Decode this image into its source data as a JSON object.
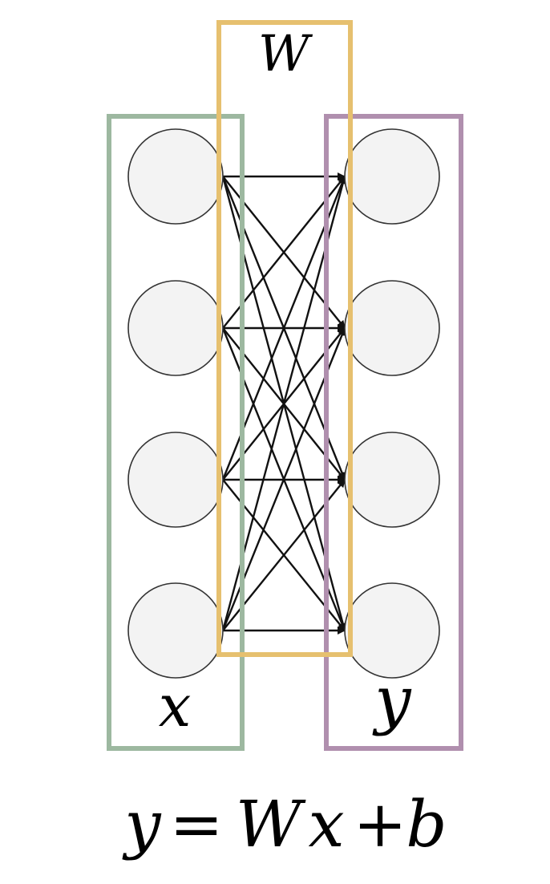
{
  "labels": {
    "weights": "W",
    "input": "x",
    "output": "y"
  },
  "equation": {
    "lhs": "y",
    "equals": "=",
    "w": "W",
    "x": "x",
    "plus": "+",
    "b": "b"
  },
  "network": {
    "input_neurons": 4,
    "output_neurons": 4,
    "connections": "fully-connected"
  },
  "colors": {
    "input_box": "#9db8a0",
    "weight_box": "#e6c06f",
    "output_box": "#b08fae",
    "neuron_fill": "#f3f3f3",
    "edge": "#111111"
  }
}
